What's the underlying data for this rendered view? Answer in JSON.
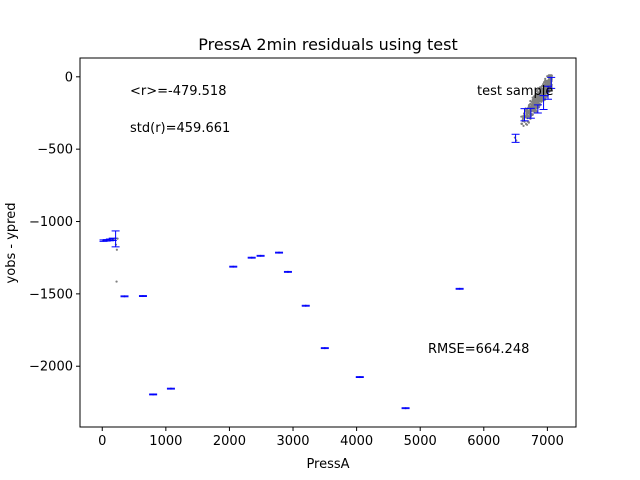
{
  "chart_data": {
    "type": "scatter",
    "title": "PressA 2min residuals using test",
    "xlabel": "PressA",
    "ylabel": "yobs - ypred",
    "xlim": [
      -350,
      7450
    ],
    "ylim": [
      -2420,
      130
    ],
    "x_ticks": [
      0,
      1000,
      2000,
      3000,
      4000,
      5000,
      6000,
      7000
    ],
    "x_tick_labels": [
      "0",
      "1000",
      "2000",
      "3000",
      "4000",
      "5000",
      "6000",
      "7000"
    ],
    "y_ticks": [
      0,
      -500,
      -1000,
      -1500,
      -2000
    ],
    "y_tick_labels": [
      "0",
      "−500",
      "−1000",
      "−1500",
      "−2000"
    ],
    "annotations": {
      "mean": "<r>=-479.518",
      "std": "std(r)=459.661",
      "sample": "test sample",
      "rmse": "RMSE=664.248"
    },
    "colors": {
      "points": "#808080",
      "error_bars": "#0000ff",
      "axes": "#000000",
      "background": "#ffffff"
    },
    "binned": [
      {
        "x": 20,
        "y": -1132,
        "err": 5
      },
      {
        "x": 70,
        "y": -1130,
        "err": 5
      },
      {
        "x": 120,
        "y": -1127,
        "err": 6
      },
      {
        "x": 165,
        "y": -1123,
        "err": 8
      },
      {
        "x": 210,
        "y": -1120,
        "err": 55
      },
      {
        "x": 350,
        "y": -1517,
        "err": 3
      },
      {
        "x": 640,
        "y": -1515,
        "err": 3
      },
      {
        "x": 800,
        "y": -2195,
        "err": 3
      },
      {
        "x": 1080,
        "y": -2155,
        "err": 3
      },
      {
        "x": 2060,
        "y": -1312,
        "err": 3
      },
      {
        "x": 2350,
        "y": -1250,
        "err": 3
      },
      {
        "x": 2490,
        "y": -1237,
        "err": 3
      },
      {
        "x": 2780,
        "y": -1215,
        "err": 3
      },
      {
        "x": 2920,
        "y": -1348,
        "err": 3
      },
      {
        "x": 3200,
        "y": -1582,
        "err": 3
      },
      {
        "x": 3500,
        "y": -1875,
        "err": 3
      },
      {
        "x": 4050,
        "y": -2075,
        "err": 3
      },
      {
        "x": 4770,
        "y": -2290,
        "err": 3
      },
      {
        "x": 5620,
        "y": -1465,
        "err": 3
      },
      {
        "x": 6500,
        "y": -425,
        "err": 28
      },
      {
        "x": 6640,
        "y": -262,
        "err": 42
      },
      {
        "x": 6740,
        "y": -252,
        "err": 34
      },
      {
        "x": 6850,
        "y": -222,
        "err": 28
      },
      {
        "x": 6940,
        "y": -178,
        "err": 48
      },
      {
        "x": 7010,
        "y": -110,
        "err": 45
      },
      {
        "x": 7060,
        "y": -42,
        "err": 38
      }
    ],
    "scatter_points": [
      {
        "x": 15,
        "y": -1133
      },
      {
        "x": 40,
        "y": -1131
      },
      {
        "x": 60,
        "y": -1130
      },
      {
        "x": 90,
        "y": -1129
      },
      {
        "x": 110,
        "y": -1127
      },
      {
        "x": 140,
        "y": -1125
      },
      {
        "x": 160,
        "y": -1123
      },
      {
        "x": 180,
        "y": -1121
      },
      {
        "x": 200,
        "y": -1119
      },
      {
        "x": 215,
        "y": -1160
      },
      {
        "x": 230,
        "y": -1195
      },
      {
        "x": 240,
        "y": -1118
      },
      {
        "x": 225,
        "y": -1415
      },
      {
        "x": 350,
        "y": -1517
      },
      {
        "x": 640,
        "y": -1515
      },
      {
        "x": 800,
        "y": -2195
      },
      {
        "x": 1080,
        "y": -2155
      },
      {
        "x": 2060,
        "y": -1312
      },
      {
        "x": 2350,
        "y": -1250
      },
      {
        "x": 2490,
        "y": -1237
      },
      {
        "x": 2780,
        "y": -1215
      },
      {
        "x": 2920,
        "y": -1348
      },
      {
        "x": 3200,
        "y": -1582
      },
      {
        "x": 3500,
        "y": -1875
      },
      {
        "x": 4050,
        "y": -2075
      },
      {
        "x": 4770,
        "y": -2290
      },
      {
        "x": 5620,
        "y": -1465
      },
      {
        "x": 6490,
        "y": -420
      },
      {
        "x": 6510,
        "y": -440
      }
    ],
    "cloud": {
      "x_range": [
        6580,
        7070
      ],
      "y_range": [
        -420,
        10
      ],
      "count": 480,
      "trend_y_at_x_min": -330,
      "trend_y_at_x_max": -20,
      "spread": 75
    }
  }
}
